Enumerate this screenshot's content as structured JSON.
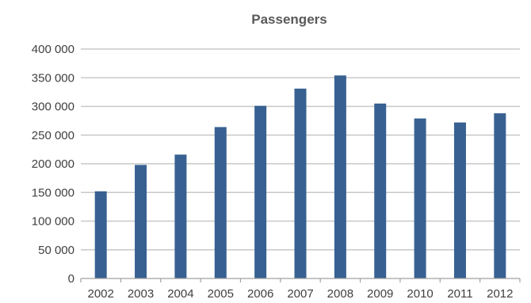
{
  "chart_data": {
    "type": "bar",
    "title": "Passengers",
    "categories": [
      "2002",
      "2003",
      "2004",
      "2005",
      "2006",
      "2007",
      "2008",
      "2009",
      "2010",
      "2011",
      "2012"
    ],
    "series": [
      {
        "values": [
          152000,
          198000,
          216000,
          264000,
          301000,
          331000,
          354000,
          305000,
          279000,
          272000,
          288000
        ]
      }
    ],
    "ylim": [
      0,
      400000
    ],
    "yticks": [
      0,
      50000,
      100000,
      150000,
      200000,
      250000,
      300000,
      350000,
      400000
    ],
    "ytick_labels": [
      "0",
      "50 000",
      "100 000",
      "150 000",
      "200 000",
      "250 000",
      "300 000",
      "350 000",
      "400 000"
    ],
    "grid": true,
    "legend": "none",
    "colors": {
      "bar": "#386192",
      "grid": "#c8c8c8",
      "text": "#404040",
      "title": "#595959"
    }
  }
}
